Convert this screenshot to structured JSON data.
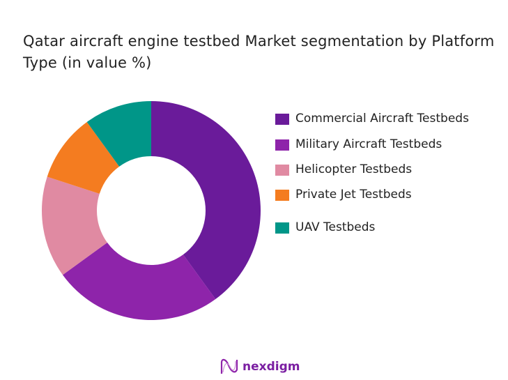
{
  "chart_data": {
    "type": "pie",
    "variant": "donut",
    "title": "Qatar aircraft engine testbed Market segmentation by Platform Type (in value %)",
    "categories": [
      "Commercial Aircraft Testbeds",
      "Military Aircraft Testbeds",
      "Helicopter Testbeds",
      "Private Jet Testbeds",
      "UAV Testbeds"
    ],
    "values": [
      40,
      25,
      15,
      10,
      10
    ],
    "colors": [
      "#6a1b9a",
      "#8e24aa",
      "#e08aa2",
      "#f47c20",
      "#009688"
    ],
    "legend_position": "right"
  },
  "logo": {
    "text": "nexdigm"
  }
}
